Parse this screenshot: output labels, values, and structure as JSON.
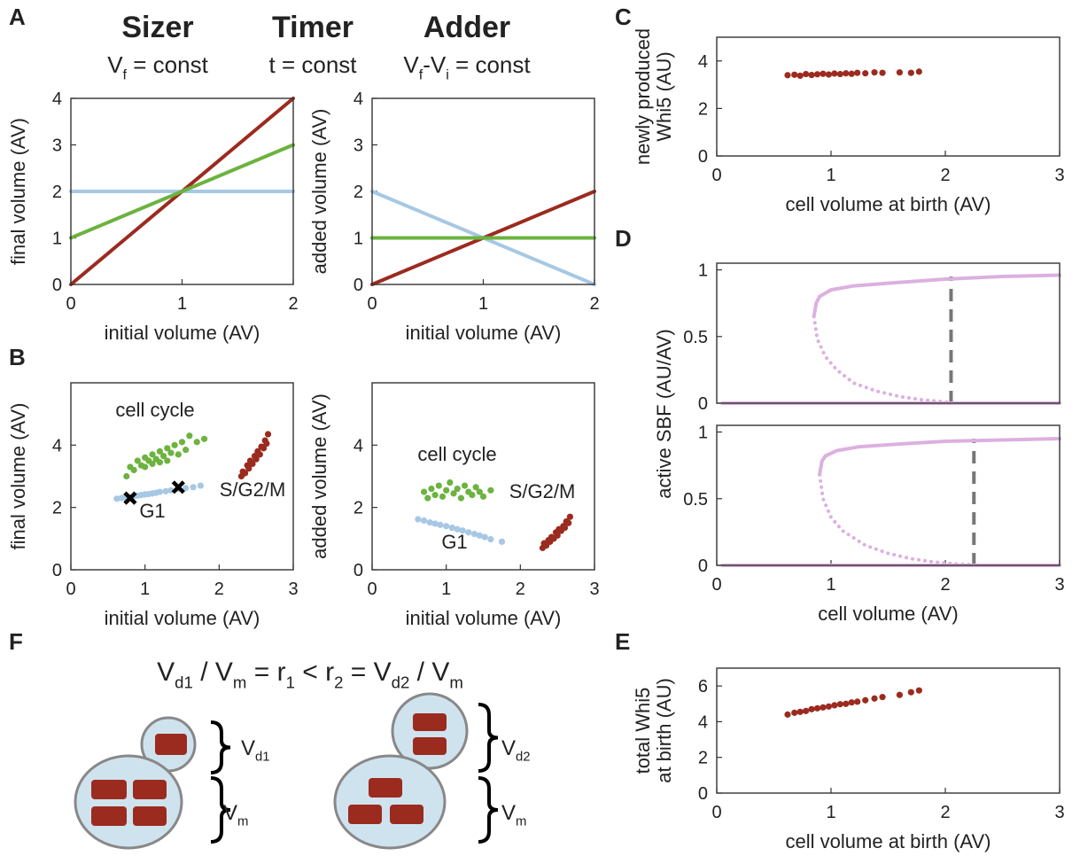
{
  "panel_labels": [
    "A",
    "B",
    "C",
    "D",
    "E",
    "F"
  ],
  "diagram": {
    "title": [
      "V",
      "d1",
      " / V",
      "m",
      " = r",
      "1",
      " < r",
      "2",
      " = V",
      "d2",
      " / V",
      "m"
    ],
    "labels": [
      [
        "V",
        "d1"
      ],
      [
        "V",
        "m"
      ],
      [
        "V",
        "d2"
      ],
      [
        "V",
        "m"
      ]
    ]
  },
  "chart_data": [
    {
      "type": "line",
      "xlim": [
        0,
        2
      ],
      "ylim": [
        0,
        4
      ],
      "xticks": [
        0,
        1,
        2
      ],
      "yticks": [
        0,
        1,
        2,
        3,
        4
      ],
      "xlabel": "initial volume (AV)",
      "ylabel": "final volume (AV)",
      "series": [
        {
          "name": "Sizer",
          "color": "#a6c8e4",
          "formula": [
            "V",
            "f",
            " = const"
          ],
          "x": [
            0,
            2
          ],
          "values": [
            2,
            2
          ]
        },
        {
          "name": "Timer",
          "color": "#9b2b1f",
          "formula": [
            "t = const"
          ],
          "x": [
            0,
            2
          ],
          "values": [
            0,
            4
          ]
        },
        {
          "name": "Adder",
          "color": "#6cb33f",
          "formula": [
            "V",
            "f",
            "-V",
            "i",
            " = const"
          ],
          "x": [
            0,
            2
          ],
          "values": [
            1,
            3
          ]
        }
      ]
    },
    {
      "type": "line",
      "xlim": [
        0,
        2
      ],
      "ylim": [
        0,
        4
      ],
      "xticks": [
        0,
        1,
        2
      ],
      "yticks": [
        0,
        1,
        2,
        3,
        4
      ],
      "xlabel": "initial volume (AV)",
      "ylabel": "added volume (AV)",
      "series": [
        {
          "color": "#a6c8e4",
          "x": [
            0,
            2
          ],
          "values": [
            2,
            0
          ]
        },
        {
          "color": "#9b2b1f",
          "x": [
            0,
            2
          ],
          "values": [
            0,
            2
          ]
        },
        {
          "color": "#6cb33f",
          "x": [
            0,
            2
          ],
          "values": [
            1,
            1
          ]
        }
      ]
    },
    {
      "type": "scatter",
      "xlim": [
        0,
        3
      ],
      "ylim": [
        0,
        6
      ],
      "xticks": [
        0,
        1,
        2,
        3
      ],
      "yticks": [
        0,
        2,
        4
      ],
      "xlabel": "initial volume (AV)",
      "ylabel": "final volume (AV)",
      "series": [
        {
          "name": "cell cycle",
          "color": "#6cb33f",
          "x": [
            0.75,
            0.8,
            0.85,
            0.9,
            0.95,
            1.0,
            1.0,
            1.05,
            1.1,
            1.1,
            1.15,
            1.2,
            1.2,
            1.25,
            1.3,
            1.3,
            1.35,
            1.4,
            1.45,
            1.5,
            1.55,
            1.6,
            1.7,
            1.8
          ],
          "values": [
            3.0,
            3.3,
            3.2,
            3.5,
            3.35,
            3.6,
            3.3,
            3.5,
            3.7,
            3.4,
            3.55,
            3.8,
            3.45,
            3.65,
            3.9,
            3.5,
            3.75,
            4.0,
            3.7,
            4.1,
            3.85,
            4.3,
            4.1,
            4.2
          ]
        },
        {
          "name": "G1",
          "color": "#a6c8e4",
          "x": [
            0.62,
            0.68,
            0.72,
            0.78,
            0.85,
            0.9,
            0.95,
            1.0,
            1.05,
            1.1,
            1.15,
            1.2,
            1.28,
            1.35,
            1.45,
            1.55,
            1.65,
            1.75
          ],
          "values": [
            2.28,
            2.3,
            2.32,
            2.33,
            2.36,
            2.38,
            2.4,
            2.42,
            2.43,
            2.45,
            2.47,
            2.5,
            2.52,
            2.55,
            2.6,
            2.62,
            2.65,
            2.7
          ]
        },
        {
          "name": "S/G2/M",
          "color": "#9b2b1f",
          "x": [
            2.3,
            2.32,
            2.35,
            2.38,
            2.4,
            2.42,
            2.45,
            2.48,
            2.5,
            2.52,
            2.55,
            2.57,
            2.6,
            2.62,
            2.64,
            2.66
          ],
          "values": [
            3.0,
            3.15,
            3.1,
            3.35,
            3.25,
            3.5,
            3.4,
            3.65,
            3.55,
            3.8,
            3.7,
            3.95,
            3.9,
            4.15,
            4.05,
            4.35
          ]
        },
        {
          "color": "#000000",
          "marker": "x",
          "x": [
            0.8,
            1.45
          ],
          "values": [
            2.3,
            2.65
          ]
        }
      ]
    },
    {
      "type": "scatter",
      "xlim": [
        0,
        3
      ],
      "ylim": [
        0,
        6
      ],
      "xticks": [
        0,
        1,
        2,
        3
      ],
      "yticks": [
        0,
        2,
        4
      ],
      "xlabel": "initial volume (AV)",
      "ylabel": "added volume (AV)",
      "series": [
        {
          "name": "cell cycle",
          "color": "#6cb33f",
          "x": [
            0.7,
            0.75,
            0.8,
            0.85,
            0.9,
            0.95,
            1.0,
            1.05,
            1.1,
            1.15,
            1.2,
            1.25,
            1.3,
            1.35,
            1.4,
            1.45,
            1.5,
            1.6
          ],
          "values": [
            2.5,
            2.3,
            2.6,
            2.4,
            2.7,
            2.35,
            2.55,
            2.8,
            2.45,
            2.6,
            2.3,
            2.7,
            2.5,
            2.4,
            2.65,
            2.5,
            2.35,
            2.55
          ]
        },
        {
          "name": "S/G2/M",
          "color": "#9b2b1f",
          "x": [
            2.3,
            2.32,
            2.35,
            2.38,
            2.4,
            2.42,
            2.45,
            2.48,
            2.5,
            2.52,
            2.55,
            2.58,
            2.6,
            2.62,
            2.65,
            2.67
          ],
          "values": [
            0.7,
            0.85,
            0.78,
            0.95,
            0.9,
            1.05,
            1.0,
            1.2,
            1.1,
            1.3,
            1.25,
            1.4,
            1.35,
            1.55,
            1.5,
            1.7
          ]
        },
        {
          "name": "G1",
          "color": "#a6c8e4",
          "x": [
            0.62,
            0.7,
            0.78,
            0.85,
            0.92,
            1.0,
            1.08,
            1.15,
            1.22,
            1.3,
            1.38,
            1.45,
            1.52,
            1.6,
            1.75
          ],
          "values": [
            1.62,
            1.58,
            1.52,
            1.48,
            1.44,
            1.4,
            1.35,
            1.3,
            1.26,
            1.2,
            1.15,
            1.1,
            1.05,
            0.98,
            0.9
          ]
        }
      ]
    },
    {
      "type": "scatter",
      "xlim": [
        0,
        3
      ],
      "ylim": [
        0,
        5
      ],
      "xticks": [
        0,
        1,
        2,
        3
      ],
      "yticks": [
        0,
        2,
        4
      ],
      "xlabel": "cell volume at birth (AV)",
      "ylabel": [
        "newly produced",
        "Whi5 (AU)"
      ],
      "series": [
        {
          "color": "#9b2b1f",
          "x": [
            0.62,
            0.68,
            0.73,
            0.78,
            0.83,
            0.88,
            0.93,
            0.98,
            1.03,
            1.08,
            1.13,
            1.18,
            1.23,
            1.3,
            1.38,
            1.45,
            1.6,
            1.7,
            1.77
          ],
          "values": [
            3.4,
            3.42,
            3.38,
            3.45,
            3.41,
            3.44,
            3.46,
            3.43,
            3.47,
            3.45,
            3.48,
            3.46,
            3.5,
            3.48,
            3.52,
            3.5,
            3.52,
            3.5,
            3.55
          ]
        }
      ]
    },
    {
      "type": "line",
      "xlim": [
        0,
        3
      ],
      "ylim": [
        0,
        1.05
      ],
      "yticks": [
        0,
        0.5,
        1
      ],
      "ylabel": "active SBF (AU/AV)",
      "threshold": 2.05,
      "series": [
        {
          "color": "#dcb0e0",
          "x": [
            0.05,
            3
          ],
          "values": [
            0,
            0
          ]
        },
        {
          "color": "#dcb0e0",
          "x": [
            0.85,
            0.87,
            0.9,
            1.0,
            1.2,
            1.5,
            2,
            2.5,
            3
          ],
          "values": [
            0.65,
            0.75,
            0.8,
            0.85,
            0.88,
            0.9,
            0.93,
            0.95,
            0.96
          ]
        },
        {
          "color": "#dcb0e0",
          "dash": "dotted",
          "x": [
            0.85,
            0.88,
            0.95,
            1.05,
            1.2,
            1.4,
            1.6,
            1.8,
            2.0,
            2.05
          ],
          "values": [
            0.65,
            0.48,
            0.35,
            0.25,
            0.15,
            0.09,
            0.05,
            0.025,
            0.01,
            0.005
          ]
        }
      ]
    },
    {
      "type": "line",
      "xlim": [
        0,
        3
      ],
      "ylim": [
        0,
        1.05
      ],
      "xticks": [
        0,
        1,
        2,
        3
      ],
      "yticks": [
        0,
        0.5,
        1
      ],
      "xlabel": "cell volume (AV)",
      "threshold": 2.25,
      "series": [
        {
          "color": "#dcb0e0",
          "x": [
            0.05,
            3
          ],
          "values": [
            0,
            0
          ]
        },
        {
          "color": "#dcb0e0",
          "x": [
            0.9,
            0.92,
            0.95,
            1.05,
            1.25,
            1.6,
            2,
            2.5,
            3
          ],
          "values": [
            0.68,
            0.78,
            0.82,
            0.86,
            0.89,
            0.91,
            0.93,
            0.94,
            0.95
          ]
        },
        {
          "color": "#dcb0e0",
          "dash": "dotted",
          "x": [
            0.9,
            0.93,
            1.0,
            1.1,
            1.3,
            1.5,
            1.7,
            1.9,
            2.1,
            2.25
          ],
          "values": [
            0.68,
            0.5,
            0.36,
            0.26,
            0.15,
            0.09,
            0.05,
            0.025,
            0.01,
            0.005
          ]
        }
      ]
    },
    {
      "type": "scatter",
      "xlim": [
        0,
        3
      ],
      "ylim": [
        0,
        7
      ],
      "xticks": [
        0,
        1,
        2,
        3
      ],
      "yticks": [
        0,
        2,
        4,
        6
      ],
      "xlabel": "cell volume at birth (AV)",
      "ylabel": [
        "total Whi5",
        "at birth (AU)"
      ],
      "series": [
        {
          "color": "#9b2b1f",
          "x": [
            0.62,
            0.68,
            0.73,
            0.78,
            0.83,
            0.88,
            0.93,
            0.98,
            1.03,
            1.08,
            1.13,
            1.18,
            1.23,
            1.3,
            1.38,
            1.45,
            1.6,
            1.7,
            1.77
          ],
          "values": [
            4.4,
            4.5,
            4.55,
            4.6,
            4.7,
            4.75,
            4.8,
            4.85,
            4.92,
            4.98,
            5.0,
            5.08,
            5.12,
            5.2,
            5.3,
            5.38,
            5.5,
            5.65,
            5.75
          ]
        }
      ]
    }
  ]
}
